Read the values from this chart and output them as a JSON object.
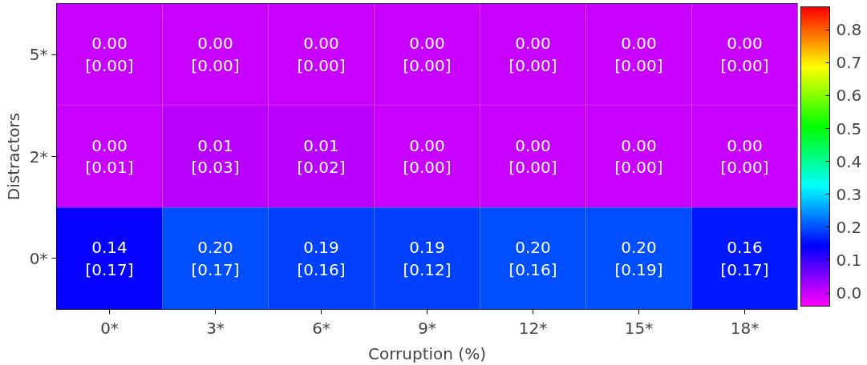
{
  "chart_data": {
    "type": "heatmap",
    "xlabel": "Corruption (%)",
    "ylabel": "Distractors",
    "categories": [
      "0*",
      "3*",
      "6*",
      "9*",
      "12*",
      "15*",
      "18*"
    ],
    "y_categories": [
      "5*",
      "2*",
      "0*"
    ],
    "cells": [
      [
        0.0,
        0.0,
        0.0,
        0.0,
        0.0,
        0.0,
        0.0
      ],
      [
        0.0,
        0.01,
        0.01,
        0.0,
        0.0,
        0.0,
        0.0
      ],
      [
        0.14,
        0.2,
        0.19,
        0.19,
        0.2,
        0.2,
        0.16
      ]
    ],
    "cell_labels": [
      [
        "0.00\n[0.00]",
        "0.00\n[0.00]",
        "0.00\n[0.00]",
        "0.00\n[0.00]",
        "0.00\n[0.00]",
        "0.00\n[0.00]",
        "0.00\n[0.00]"
      ],
      [
        "0.00\n[0.01]",
        "0.01\n[0.03]",
        "0.01\n[0.02]",
        "0.00\n[0.00]",
        "0.00\n[0.00]",
        "0.00\n[0.00]",
        "0.00\n[0.00]"
      ],
      [
        "0.14\n[0.17]",
        "0.20\n[0.17]",
        "0.19\n[0.16]",
        "0.19\n[0.12]",
        "0.20\n[0.16]",
        "0.20\n[0.19]",
        "0.16\n[0.17]"
      ]
    ],
    "clim": [
      -0.04,
      0.87
    ],
    "cticks": [
      {
        "value": 0,
        "label": "0.0"
      },
      {
        "value": 0.1,
        "label": "0.1"
      },
      {
        "value": 0.2,
        "label": "0.2"
      },
      {
        "value": 0.3,
        "label": "0.3"
      },
      {
        "value": 0.4,
        "label": "0.4"
      },
      {
        "value": 0.5,
        "label": "0.5"
      },
      {
        "value": 0.6,
        "label": "0.6"
      },
      {
        "value": 0.7,
        "label": "0.7"
      },
      {
        "value": 0.8,
        "label": "0.8"
      }
    ]
  }
}
